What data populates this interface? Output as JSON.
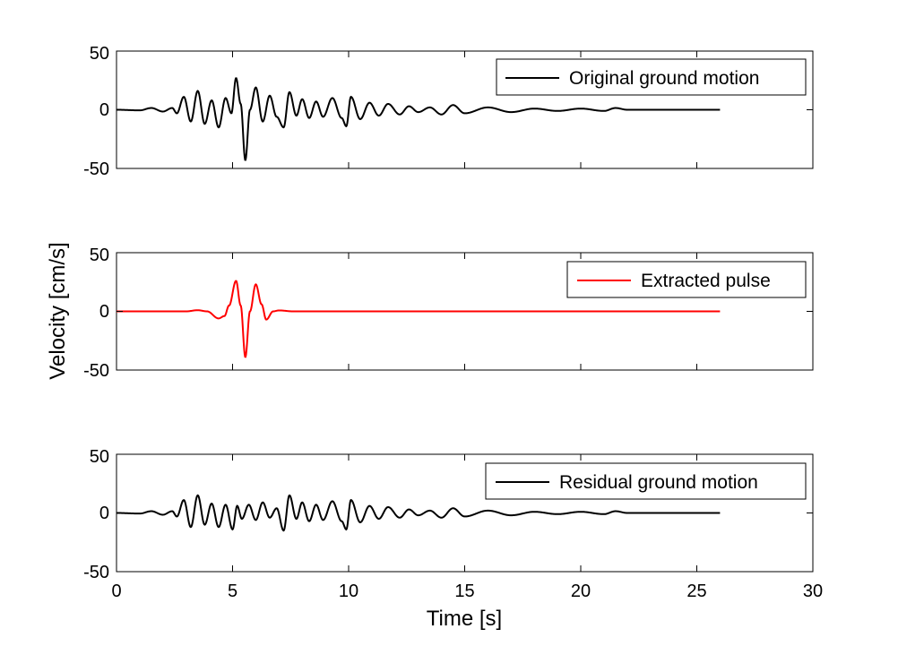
{
  "chart_data": {
    "type": "line",
    "xlabel": "Time [s]",
    "ylabel": "Velocity [cm/s]",
    "xlim": [
      0,
      30
    ],
    "ylim": [
      -50,
      50
    ],
    "xticks": [
      "0",
      "5",
      "10",
      "15",
      "20",
      "25",
      "30"
    ],
    "yticks": [
      "-50",
      "0",
      "50"
    ],
    "grid": false,
    "legend_position": "top-right",
    "duration_s": 26,
    "panels": [
      {
        "legend": "Original ground motion",
        "color": "#000000",
        "keypoints": [
          [
            0,
            0
          ],
          [
            1.0,
            -0.5
          ],
          [
            1.5,
            1.5
          ],
          [
            2.0,
            -1.5
          ],
          [
            2.4,
            1.5
          ],
          [
            2.6,
            -3
          ],
          [
            2.9,
            11
          ],
          [
            3.2,
            -10
          ],
          [
            3.5,
            16
          ],
          [
            3.8,
            -12
          ],
          [
            4.1,
            8
          ],
          [
            4.4,
            -15
          ],
          [
            4.7,
            10
          ],
          [
            4.95,
            -3
          ],
          [
            5.15,
            27
          ],
          [
            5.35,
            5
          ],
          [
            5.55,
            -43
          ],
          [
            5.75,
            0
          ],
          [
            6.0,
            19
          ],
          [
            6.3,
            -10
          ],
          [
            6.6,
            12
          ],
          [
            6.9,
            -6
          ],
          [
            7.2,
            -15
          ],
          [
            7.45,
            15
          ],
          [
            7.75,
            -5
          ],
          [
            8.0,
            9
          ],
          [
            8.3,
            -7
          ],
          [
            8.6,
            7
          ],
          [
            8.9,
            -6
          ],
          [
            9.3,
            10
          ],
          [
            9.7,
            -7
          ],
          [
            9.9,
            -14
          ],
          [
            10.1,
            11
          ],
          [
            10.5,
            -8
          ],
          [
            10.9,
            6
          ],
          [
            11.3,
            -5
          ],
          [
            11.7,
            5
          ],
          [
            12.2,
            -4
          ],
          [
            12.6,
            3
          ],
          [
            13.0,
            -2
          ],
          [
            13.5,
            2
          ],
          [
            14.0,
            -4
          ],
          [
            14.5,
            4
          ],
          [
            15.0,
            -3
          ],
          [
            16.0,
            2
          ],
          [
            17.0,
            -2
          ],
          [
            18.0,
            1
          ],
          [
            19.0,
            -1
          ],
          [
            20.0,
            1
          ],
          [
            21.0,
            -1
          ],
          [
            21.5,
            1.5
          ],
          [
            22.0,
            0
          ],
          [
            26,
            0
          ]
        ]
      },
      {
        "legend": "Extracted pulse",
        "color": "#ff0000",
        "keypoints": [
          [
            0,
            0
          ],
          [
            3.0,
            0
          ],
          [
            3.5,
            1
          ],
          [
            3.9,
            0
          ],
          [
            4.4,
            -6
          ],
          [
            4.65,
            -4
          ],
          [
            4.85,
            5
          ],
          [
            5.15,
            26
          ],
          [
            5.35,
            5
          ],
          [
            5.55,
            -39
          ],
          [
            5.75,
            0
          ],
          [
            6.0,
            23
          ],
          [
            6.25,
            6
          ],
          [
            6.45,
            -7
          ],
          [
            6.75,
            0
          ],
          [
            7.0,
            0.8
          ],
          [
            7.6,
            0
          ],
          [
            8.0,
            0
          ],
          [
            26,
            0
          ]
        ]
      },
      {
        "legend": "Residual ground motion",
        "color": "#000000",
        "keypoints": [
          [
            0,
            0
          ],
          [
            1.0,
            -0.5
          ],
          [
            1.5,
            1.5
          ],
          [
            2.0,
            -1.5
          ],
          [
            2.4,
            1.5
          ],
          [
            2.6,
            -3
          ],
          [
            2.9,
            11
          ],
          [
            3.2,
            -12
          ],
          [
            3.5,
            15
          ],
          [
            3.8,
            -10
          ],
          [
            4.1,
            8
          ],
          [
            4.4,
            -12
          ],
          [
            4.7,
            7
          ],
          [
            5.0,
            -14
          ],
          [
            5.2,
            6
          ],
          [
            5.4,
            -5
          ],
          [
            5.7,
            7
          ],
          [
            6.0,
            -6
          ],
          [
            6.3,
            9
          ],
          [
            6.6,
            -4
          ],
          [
            6.9,
            4
          ],
          [
            7.2,
            -15
          ],
          [
            7.45,
            15
          ],
          [
            7.75,
            -5
          ],
          [
            8.0,
            9
          ],
          [
            8.3,
            -7
          ],
          [
            8.6,
            7
          ],
          [
            8.9,
            -6
          ],
          [
            9.3,
            10
          ],
          [
            9.7,
            -7
          ],
          [
            9.9,
            -14
          ],
          [
            10.1,
            11
          ],
          [
            10.5,
            -8
          ],
          [
            10.9,
            6
          ],
          [
            11.3,
            -5
          ],
          [
            11.7,
            5
          ],
          [
            12.2,
            -4
          ],
          [
            12.6,
            3
          ],
          [
            13.0,
            -2
          ],
          [
            13.5,
            2
          ],
          [
            14.0,
            -4
          ],
          [
            14.5,
            4
          ],
          [
            15.0,
            -3
          ],
          [
            16.0,
            2
          ],
          [
            17.0,
            -2
          ],
          [
            18.0,
            1
          ],
          [
            19.0,
            -1
          ],
          [
            20.0,
            1
          ],
          [
            21.0,
            -1
          ],
          [
            21.5,
            1.5
          ],
          [
            22.0,
            0
          ],
          [
            26,
            0
          ]
        ]
      }
    ]
  }
}
